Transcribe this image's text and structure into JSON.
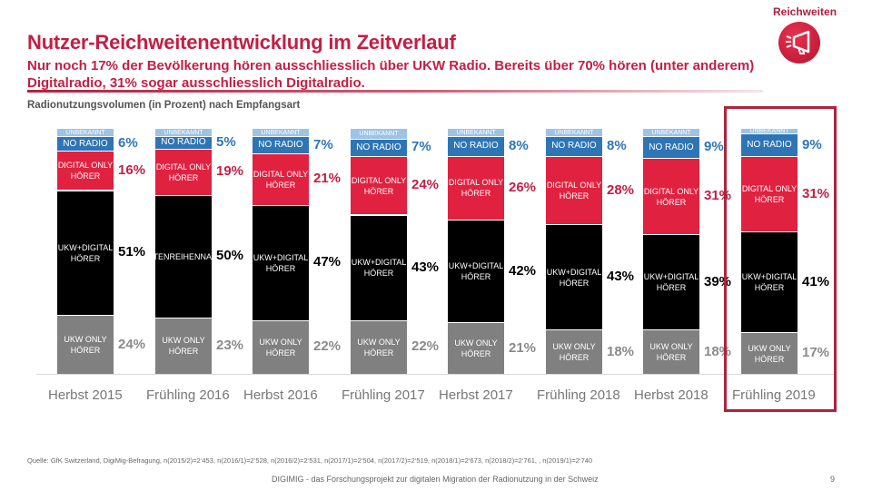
{
  "header": {
    "section_label": "Reichweiten",
    "logo_icon": "megaphone-icon",
    "title": "Nutzer-Reichweitenentwicklung im Zeitverlauf",
    "subtitle": "Nur noch 17% der Bevölkerung hören ausschliesslich über UKW Radio. Bereits über 70% hören (unter anderem) Digitalradio, 31% sogar ausschliesslich Digitalradio."
  },
  "colors": {
    "accent": "#c41e44",
    "unbekannt": "#9dc3e6",
    "no_radio": "#2e75b6",
    "digital_only": "#e0213f",
    "ukw_digital": "#000000",
    "ukw_only": "#808080",
    "highlight": "#b0223f"
  },
  "chart_data": {
    "type": "bar",
    "stacked": true,
    "orientation": "vertical",
    "title": "Radionutzungsvolumen (in Prozent) nach Empfangsart",
    "xlabel": "",
    "ylabel": "",
    "ylim": [
      0,
      100
    ],
    "grid": false,
    "legend": "inline segment labels",
    "categories": [
      "Herbst 2015",
      "Frühling 2016",
      "Herbst 2016",
      "Frühling 2017",
      "Herbst 2017",
      "Frühling 2018",
      "Herbst 2018",
      "Frühling 2019"
    ],
    "highlighted_category": "Frühling 2019",
    "series": [
      {
        "key": "ukw_only",
        "name": "UKW ONLY\nHÖRER",
        "values": [
          24,
          23,
          22,
          22,
          21,
          18,
          18,
          17
        ]
      },
      {
        "key": "ukw_digital",
        "name": "UKW+DIGITAL\nHÖRER",
        "values": [
          51,
          50,
          47,
          43,
          42,
          43,
          39,
          41
        ]
      },
      {
        "key": "digital_only",
        "name": "DIGITAL ONLY\nHÖRER",
        "values": [
          16,
          19,
          21,
          24,
          26,
          28,
          31,
          31
        ]
      },
      {
        "key": "no_radio",
        "name": "NO RADIO",
        "values": [
          6,
          5,
          7,
          7,
          8,
          8,
          9,
          9
        ]
      },
      {
        "key": "unbekannt",
        "name": "UNBEKANNT",
        "values": [
          3,
          3,
          3,
          4,
          3,
          3,
          3,
          2
        ]
      }
    ],
    "segment_label_overrides": {
      "1.ukw_digital": "TENREIHENNAI"
    },
    "percent_labels": {
      "ukw_only": [
        "24%",
        "23%",
        "22%",
        "22%",
        "21%",
        "18%",
        "18%",
        "17%"
      ],
      "ukw_digital": [
        "51%",
        "50%",
        "47%",
        "43%",
        "42%",
        "43%",
        "39%",
        "41%"
      ],
      "digital_only": [
        "16%",
        "19%",
        "21%",
        "24%",
        "26%",
        "28%",
        "31%",
        "31%"
      ],
      "no_radio": [
        "6%",
        "5%",
        "7%",
        "7%",
        "8%",
        "8%",
        "9%",
        "9%"
      ]
    }
  },
  "footer": {
    "source": "Quelle: GfK Switzerland, DigiMig-Befragung, n(2015/2)=2‘453, n(2016/1)=2‘528, n(2016/2)=2‘531, n(2017/1)=2‘504, n(2017/2)=2‘519, n(2018/1)=2‘673, n(2018/2)=2‘761, , n(2019/1)=2‘740",
    "project": "DIGIMIG - das Forschungsprojekt zur digitalen Migration der Radionutzung in der Schweiz",
    "page_number": "9"
  }
}
